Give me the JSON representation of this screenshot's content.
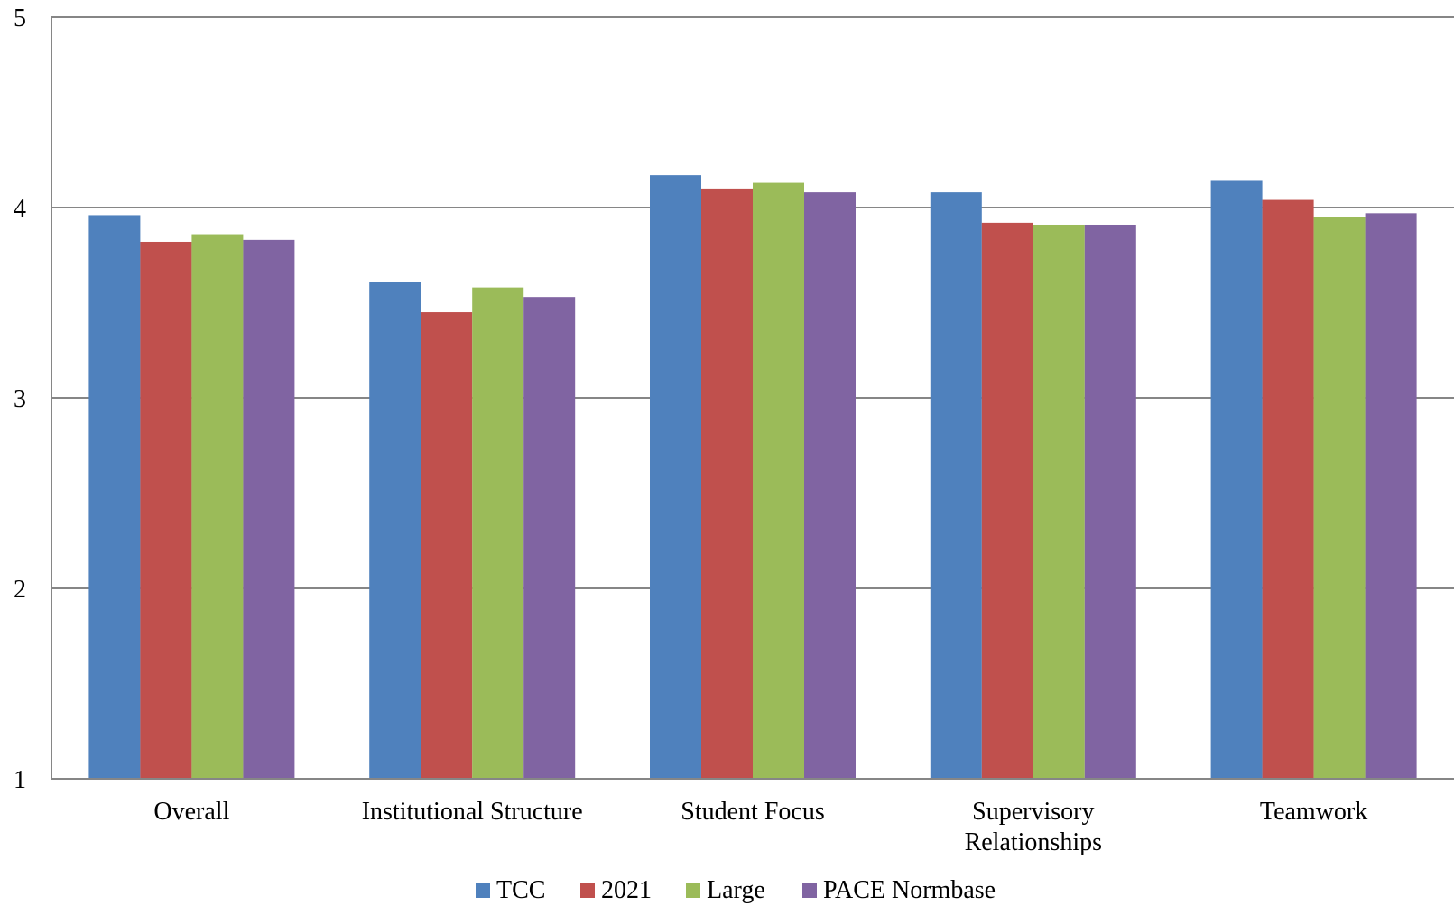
{
  "chart_data": {
    "type": "bar",
    "title": "",
    "xlabel": "",
    "ylabel": "",
    "ylim": [
      1,
      5
    ],
    "yticks": [
      "1",
      "2",
      "3",
      "4",
      "5"
    ],
    "grid": true,
    "legend_position": "bottom",
    "categories": [
      [
        "Overall"
      ],
      [
        "Institutional Structure"
      ],
      [
        "Student Focus"
      ],
      [
        "Supervisory",
        "Relationships"
      ],
      [
        "Teamwork"
      ]
    ],
    "series": [
      {
        "name": "TCC",
        "color": "#4F81BD",
        "values": [
          3.96,
          3.61,
          4.17,
          4.08,
          4.14
        ]
      },
      {
        "name": "2021",
        "color": "#C0504D",
        "values": [
          3.82,
          3.45,
          4.1,
          3.92,
          4.04
        ]
      },
      {
        "name": "Large",
        "color": "#9BBB59",
        "values": [
          3.86,
          3.58,
          4.13,
          3.91,
          3.95
        ]
      },
      {
        "name": "PACE Normbase",
        "color": "#8064A2",
        "values": [
          3.83,
          3.53,
          4.08,
          3.91,
          3.97
        ]
      }
    ]
  },
  "style": {
    "gridline_color": "#868686",
    "axis_color": "#868686"
  }
}
